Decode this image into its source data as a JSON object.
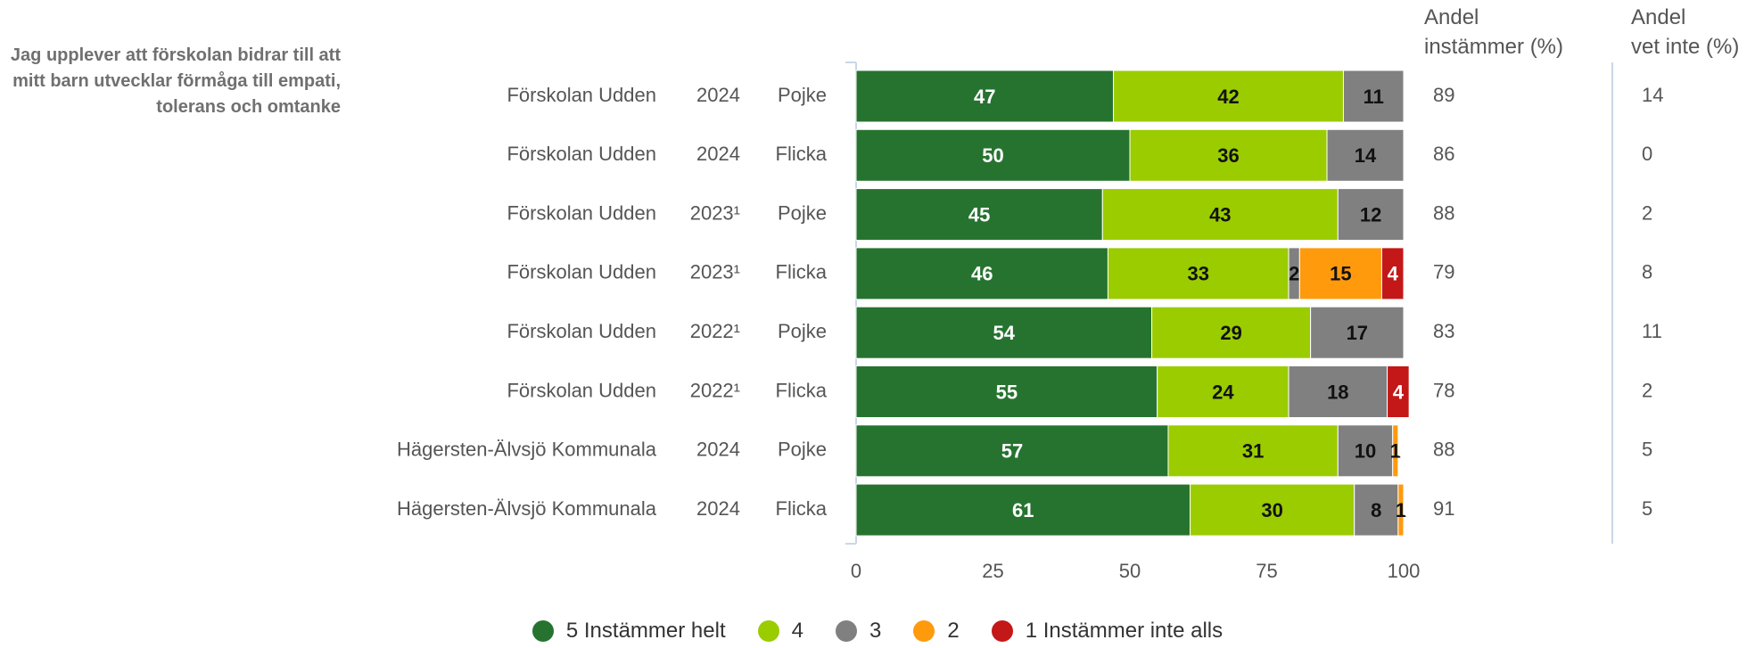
{
  "question": "Jag upplever att förskolan bidrar till att mitt barn utvecklar förmåga till empati, tolerans och omtanke",
  "header": {
    "andel_instammer": [
      "Andel",
      "instämmer (%)"
    ],
    "andel_vet_inte": [
      "Andel",
      "vet inte (%)"
    ]
  },
  "colors": {
    "s5": "#267330",
    "s4": "#9ACC00",
    "s3": "#808080",
    "s2": "#FF9A0D",
    "s1": "#C41718",
    "axis": "#C8D7E6",
    "text": "#555555"
  },
  "chart_data": {
    "type": "bar",
    "orientation": "horizontal",
    "stacked": true,
    "xlim": [
      0,
      100
    ],
    "xticks": [
      "0",
      "25",
      "50",
      "75",
      "100"
    ],
    "rows": [
      {
        "unit": "Förskolan Udden",
        "year": "2024",
        "gender": "Pojke"
      },
      {
        "unit": "Förskolan Udden",
        "year": "2024",
        "gender": "Flicka"
      },
      {
        "unit": "Förskolan Udden",
        "year": "2023¹",
        "gender": "Pojke"
      },
      {
        "unit": "Förskolan Udden",
        "year": "2023¹",
        "gender": "Flicka"
      },
      {
        "unit": "Förskolan Udden",
        "year": "2022¹",
        "gender": "Pojke"
      },
      {
        "unit": "Förskolan Udden",
        "year": "2022¹",
        "gender": "Flicka"
      },
      {
        "unit": "Hägersten-Älvsjö Kommunala",
        "year": "2024",
        "gender": "Pojke"
      },
      {
        "unit": "Hägersten-Älvsjö Kommunala",
        "year": "2024",
        "gender": "Flicka"
      }
    ],
    "series": [
      {
        "name": "5 Instämmer helt",
        "color_key": "s5",
        "values": [
          47,
          50,
          45,
          46,
          54,
          55,
          57,
          61
        ]
      },
      {
        "name": "4",
        "color_key": "s4",
        "values": [
          42,
          36,
          43,
          33,
          29,
          24,
          31,
          30
        ]
      },
      {
        "name": "3",
        "color_key": "s3",
        "values": [
          11,
          14,
          12,
          2,
          17,
          18,
          10,
          8
        ]
      },
      {
        "name": "2",
        "color_key": "s2",
        "values": [
          0,
          0,
          0,
          15,
          0,
          0,
          1,
          1
        ]
      },
      {
        "name": "1 Instämmer inte alls",
        "color_key": "s1",
        "values": [
          0,
          0,
          0,
          4,
          0,
          4,
          0,
          0
        ]
      }
    ],
    "segment_labels": [
      [
        "47",
        "42",
        "11",
        "0",
        ""
      ],
      [
        "50",
        "36",
        "14",
        "0",
        ""
      ],
      [
        "45",
        "43",
        "12",
        "0",
        ""
      ],
      [
        "46",
        "33",
        "2",
        "15",
        "4"
      ],
      [
        "54",
        "29",
        "17",
        "0",
        ""
      ],
      [
        "55",
        "24",
        "18",
        "0",
        "4"
      ],
      [
        "57",
        "31",
        "10",
        "1",
        "0"
      ],
      [
        "61",
        "30",
        "8",
        "1",
        "0"
      ]
    ],
    "andel_instammer": [
      "89",
      "86",
      "88",
      "79",
      "83",
      "78",
      "88",
      "91"
    ],
    "andel_vet_inte": [
      "14",
      "0",
      "2",
      "8",
      "11",
      "2",
      "5",
      "5"
    ],
    "legend": [
      "5 Instämmer helt",
      "4",
      "3",
      "2",
      "1 Instämmer inte alls"
    ],
    "legend_position": "bottom"
  }
}
